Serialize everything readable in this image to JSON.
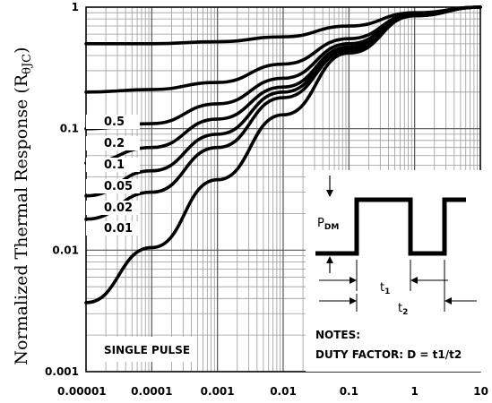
{
  "chart_data": {
    "type": "line",
    "ylabel": "Normalized Thermal Response (R",
    "ylabel_sub": "θJC",
    "ylabel_close": ")",
    "xscale": "log",
    "yscale": "log",
    "xlim": [
      1e-05,
      10
    ],
    "ylim": [
      0.001,
      1
    ],
    "grid": true,
    "x_ticks": [
      {
        "value": 1e-05,
        "label": "0.00001"
      },
      {
        "value": 0.0001,
        "label": "0.0001"
      },
      {
        "value": 0.001,
        "label": "0.001"
      },
      {
        "value": 0.01,
        "label": "0.01"
      },
      {
        "value": 0.1,
        "label": "0.1"
      },
      {
        "value": 1,
        "label": "1"
      },
      {
        "value": 10,
        "label": "10"
      }
    ],
    "y_ticks": [
      {
        "value": 0.001,
        "label": "0.001"
      },
      {
        "value": 0.01,
        "label": "0.01"
      },
      {
        "value": 0.1,
        "label": "0.1"
      },
      {
        "value": 1,
        "label": "1"
      }
    ],
    "series": [
      {
        "name": "0.5",
        "x": [
          1e-05,
          0.0001,
          0.001,
          0.01,
          0.1,
          1,
          10
        ],
        "y": [
          0.5,
          0.5,
          0.52,
          0.57,
          0.7,
          0.9,
          1.0
        ]
      },
      {
        "name": "0.2",
        "x": [
          1e-05,
          0.0001,
          0.001,
          0.01,
          0.1,
          1,
          10
        ],
        "y": [
          0.2,
          0.21,
          0.24,
          0.34,
          0.55,
          0.88,
          1.0
        ]
      },
      {
        "name": "0.1",
        "x": [
          1e-05,
          0.0001,
          0.001,
          0.01,
          0.1,
          1,
          10
        ],
        "y": [
          0.1,
          0.11,
          0.16,
          0.26,
          0.5,
          0.87,
          1.0
        ]
      },
      {
        "name": "0.05",
        "x": [
          1e-05,
          0.0001,
          0.001,
          0.01,
          0.1,
          1,
          10
        ],
        "y": [
          0.052,
          0.07,
          0.12,
          0.22,
          0.47,
          0.86,
          1.0
        ]
      },
      {
        "name": "0.02",
        "x": [
          1e-05,
          0.0001,
          0.001,
          0.01,
          0.1,
          1,
          10
        ],
        "y": [
          0.028,
          0.045,
          0.09,
          0.2,
          0.45,
          0.86,
          1.0
        ]
      },
      {
        "name": "0.01",
        "x": [
          1e-05,
          0.0001,
          0.001,
          0.01,
          0.1,
          1,
          10
        ],
        "y": [
          0.018,
          0.03,
          0.07,
          0.18,
          0.44,
          0.85,
          1.0
        ]
      },
      {
        "name": "SINGLE PULSE",
        "x": [
          1e-05,
          0.0001,
          0.001,
          0.01,
          0.1,
          1,
          10
        ],
        "y": [
          0.0037,
          0.0105,
          0.038,
          0.13,
          0.42,
          0.85,
          1.0
        ]
      }
    ],
    "annotations": {
      "single_pulse": "SINGLE PULSE",
      "notes_title": "NOTES:",
      "notes_text": "DUTY FACTOR: D = t1/t2",
      "pdm": "P",
      "pdm_sub": "DM",
      "t1": "t",
      "t1_sub": "1",
      "t2": "t",
      "t2_sub": "2"
    }
  }
}
